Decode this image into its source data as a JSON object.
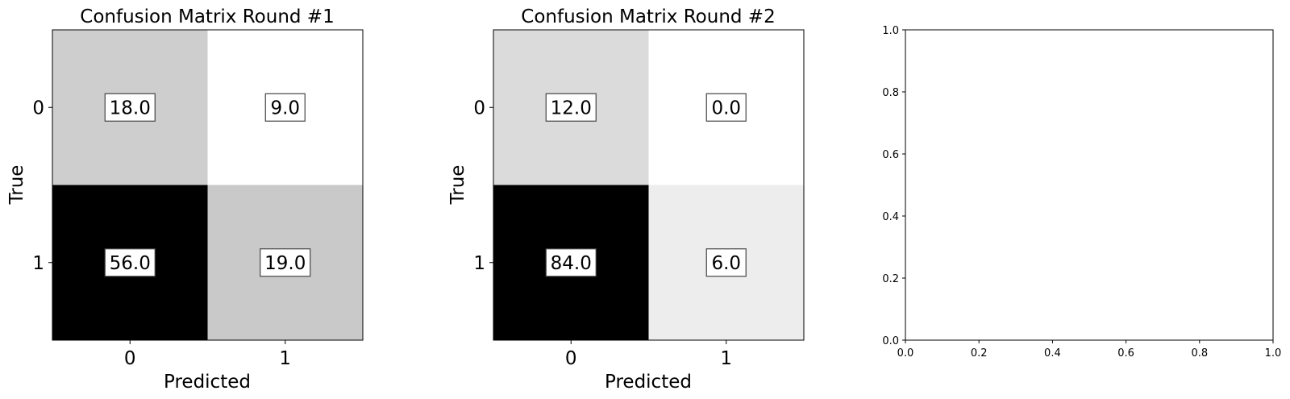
{
  "chart_data": [
    {
      "type": "heatmap",
      "title": "Confusion Matrix Round #1",
      "xlabel": "Predicted",
      "ylabel": "True",
      "x_categories": [
        "0",
        "1"
      ],
      "y_categories": [
        "0",
        "1"
      ],
      "values": [
        [
          "18.0",
          "9.0"
        ],
        [
          "56.0",
          "19.0"
        ]
      ],
      "colormap": "gray_r"
    },
    {
      "type": "heatmap",
      "title": "Confusion Matrix Round #2",
      "xlabel": "Predicted",
      "ylabel": "True",
      "x_categories": [
        "0",
        "1"
      ],
      "y_categories": [
        "0",
        "1"
      ],
      "values": [
        [
          "12.0",
          "0.0"
        ],
        [
          "84.0",
          "6.0"
        ]
      ],
      "colormap": "gray_r"
    },
    {
      "type": "scatter",
      "title": "",
      "xlabel": "",
      "ylabel": "",
      "xlim": [
        0.0,
        1.0
      ],
      "ylim": [
        0.0,
        1.0
      ],
      "x_ticks": [
        "0.0",
        "0.2",
        "0.4",
        "0.6",
        "0.8",
        "1.0"
      ],
      "y_ticks": [
        "0.0",
        "0.2",
        "0.4",
        "0.6",
        "0.8",
        "1.0"
      ],
      "series": []
    }
  ]
}
